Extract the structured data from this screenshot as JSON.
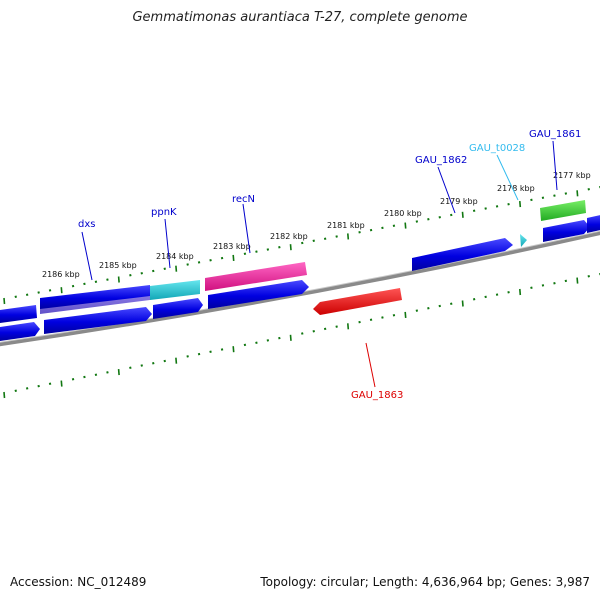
{
  "title": "Gemmatimonas aurantiaca T-27, complete genome",
  "footer": {
    "accession": "Accession: NC_012489",
    "summary": "Topology: circular; Length: 4,636,964 bp; Genes: 3,987"
  },
  "scale_labels": [
    "2186 kbp",
    "2185 kbp",
    "2184 kbp",
    "2183 kbp",
    "2182 kbp",
    "2181 kbp",
    "2180 kbp",
    "2179 kbp",
    "2178 kbp",
    "2177 kbp"
  ],
  "genes": [
    {
      "label": "dxs",
      "color": "#0000cc"
    },
    {
      "label": "ppnK",
      "color": "#0000cc"
    },
    {
      "label": "recN",
      "color": "#0000cc"
    },
    {
      "label": "GAU_1862",
      "color": "#0000cc"
    },
    {
      "label": "GAU_t0028",
      "color": "#33bbee"
    },
    {
      "label": "GAU_1861",
      "color": "#0000cc"
    },
    {
      "label": "GAU_1863",
      "color": "#dd0000"
    }
  ],
  "colors": {
    "cds": "#1a1acc",
    "cds_gene": "#0000e0",
    "ppnK_fill": "#22bbcc",
    "recN_fill": "#ee2299",
    "reverse_cds": "#ee1111",
    "rna": "#33cc33",
    "trna": "#33bbee",
    "backbone": "#888888",
    "ticks": "#117711"
  }
}
